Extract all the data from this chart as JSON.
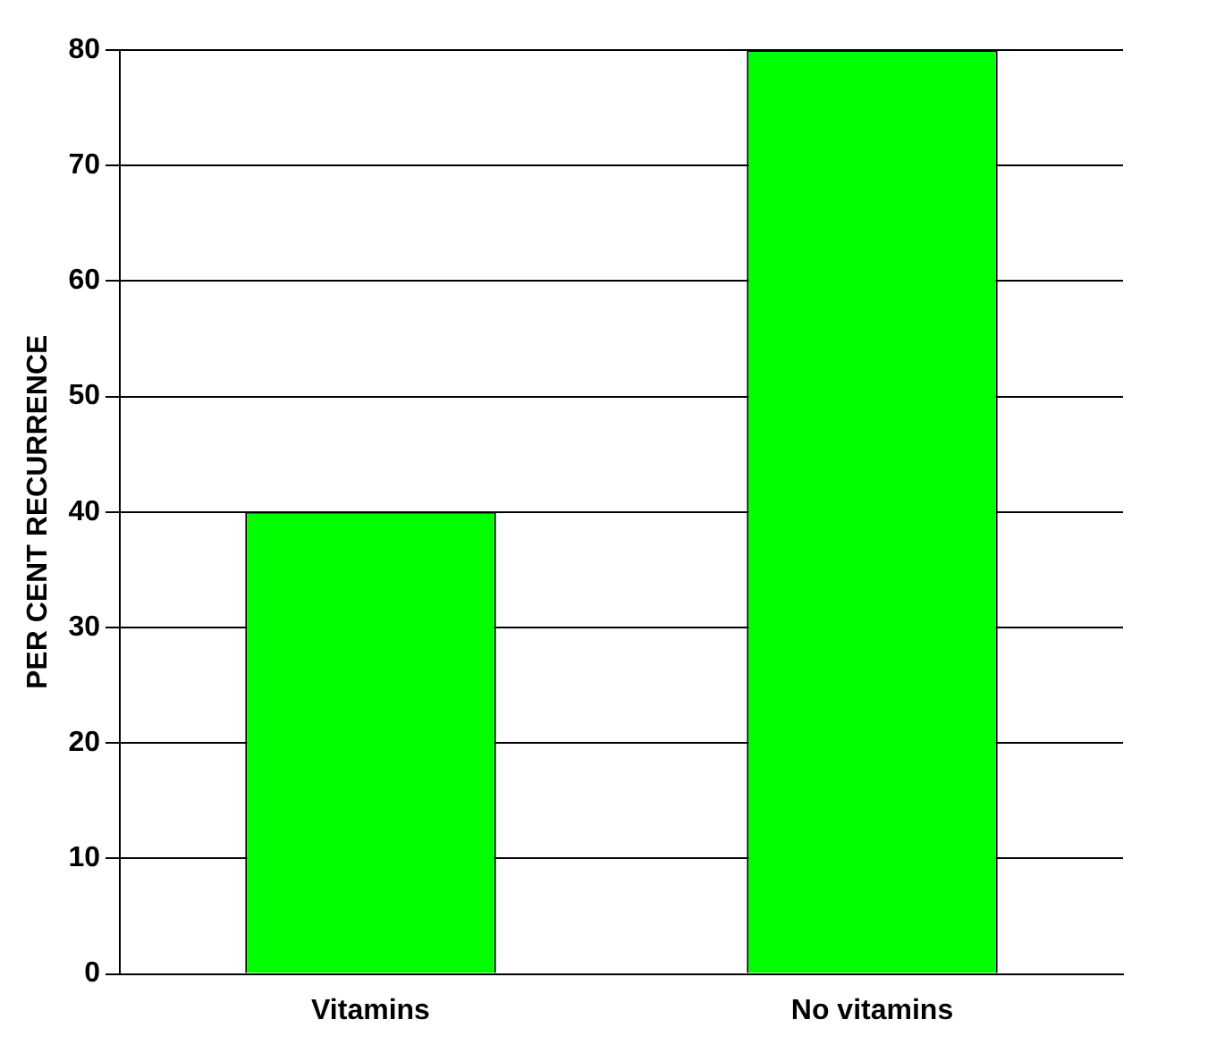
{
  "chart_data": {
    "type": "bar",
    "ylabel": "PER CENT RECURRENCE",
    "categories": [
      "Vitamins",
      "No vitamins"
    ],
    "values": [
      40,
      80
    ],
    "color": "#00ff00",
    "ylim": [
      0,
      80
    ],
    "yticks": [
      0,
      10,
      20,
      30,
      40,
      50,
      60,
      70,
      80
    ],
    "grid": "y",
    "legend": false
  }
}
